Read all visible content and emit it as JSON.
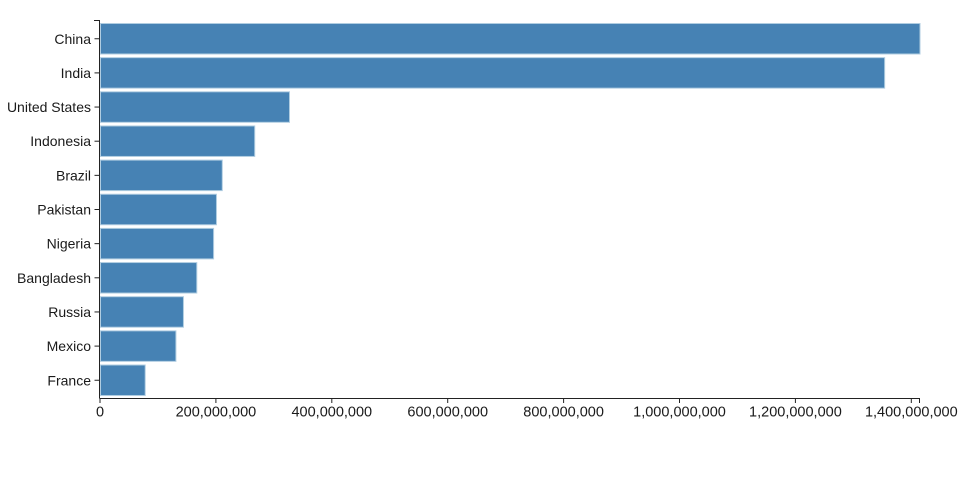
{
  "chart_data": {
    "type": "bar",
    "orientation": "horizontal",
    "categories": [
      "China",
      "India",
      "United States",
      "Indonesia",
      "Brazil",
      "Pakistan",
      "Nigeria",
      "Bangladesh",
      "Russia",
      "Mexico",
      "France"
    ],
    "values": [
      1415000000,
      1354000000,
      327000000,
      267000000,
      211000000,
      201000000,
      196000000,
      167000000,
      144000000,
      131000000,
      78000000
    ],
    "xlim": [
      0,
      1415000000
    ],
    "x_ticks": [
      {
        "value": 0,
        "label": "0"
      },
      {
        "value": 200000000,
        "label": "200,000,000"
      },
      {
        "value": 400000000,
        "label": "400,000,000"
      },
      {
        "value": 600000000,
        "label": "600,000,000"
      },
      {
        "value": 800000000,
        "label": "800,000,000"
      },
      {
        "value": 1000000000,
        "label": "1,000,000,000"
      },
      {
        "value": 1200000000,
        "label": "1,200,000,000"
      },
      {
        "value": 1400000000,
        "label": "1,400,000,000"
      }
    ],
    "grid": false,
    "legend_position": "none",
    "colors": {
      "bar": "#4682b4",
      "bar_edge": "#b0cde1",
      "axis": "#222222",
      "text": "#1a1a1a",
      "background": "#ffffff"
    }
  }
}
